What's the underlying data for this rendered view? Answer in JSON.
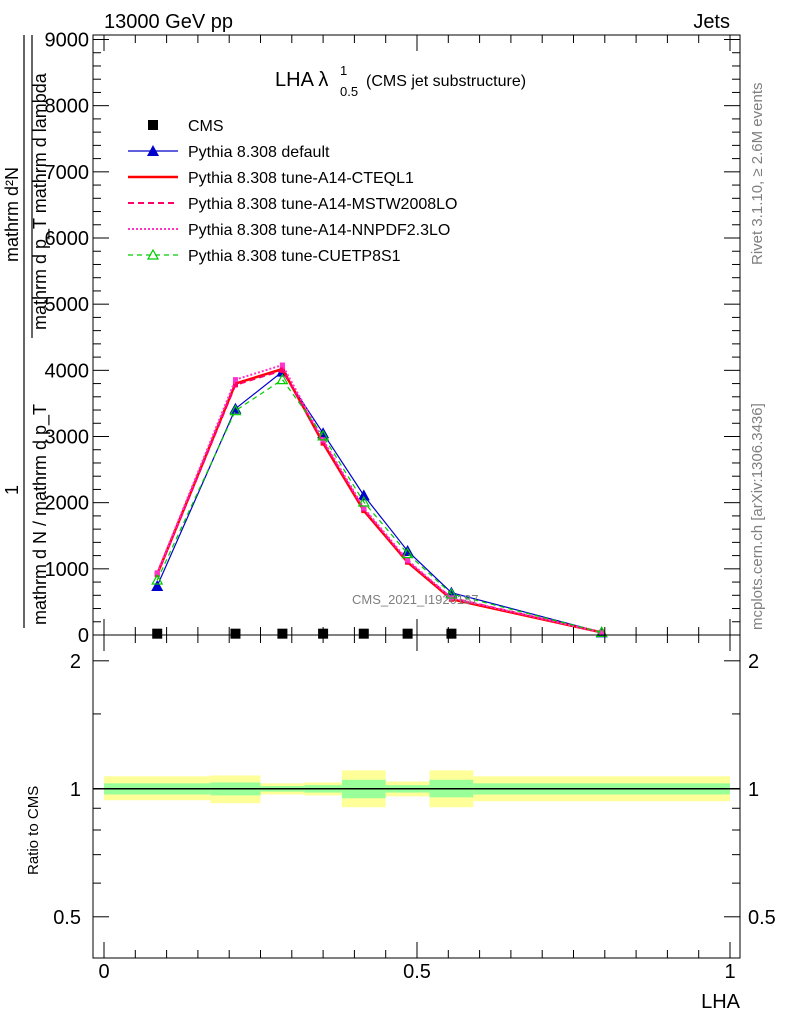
{
  "header": {
    "left_title": "13000 GeV pp",
    "right_title": "Jets",
    "plot_title_main": "LHA λ",
    "plot_title_sup": "1",
    "plot_title_sub": "0.5",
    "plot_title_suffix": "(CMS jet substructure)",
    "rivet_label": "Rivet 3.1.10, ≥ 2.6M events",
    "mcplots_label": "mcplots.cern.ch [arXiv:1306.3436]",
    "watermark": "CMS_2021_I1920187"
  },
  "ylabel_main": {
    "numerator_top": "mathrm d²N",
    "denominator_top": "mathrm d p_T mathrm d lambda",
    "left_one": "1",
    "left_denominator": "mathrm d N / mathrm d p_T"
  },
  "ratio_ylabel": "Ratio to CMS",
  "xlabel": "LHA",
  "colors": {
    "cms": "#000000",
    "default": "#0000cc",
    "cteql1": "#ff0000",
    "mstw": "#ff0066",
    "nnpdf": "#ff33cc",
    "cuetp8s1": "#00cc00",
    "band_inner": "#99ff99",
    "band_outer": "#ffff99"
  },
  "chart_data": [
    {
      "type": "line",
      "panel": "main",
      "xlim": [
        0,
        1
      ],
      "ylim": [
        0,
        9000
      ],
      "y_ticks": [
        0,
        1000,
        2000,
        3000,
        4000,
        5000,
        6000,
        7000,
        8000,
        9000
      ],
      "y_tick_labels": [
        "0",
        "1000",
        "2000",
        "3000",
        "4000",
        "5000",
        "6000",
        "7000",
        "8000",
        "9000"
      ],
      "legend_position": "top-left",
      "x": [
        0.085,
        0.21,
        0.285,
        0.35,
        0.415,
        0.485,
        0.555,
        0.795
      ],
      "series": [
        {
          "name": "CMS",
          "key": "cms",
          "style": "marker-square",
          "values": [
            20,
            20,
            20,
            20,
            20,
            20,
            20,
            null
          ]
        },
        {
          "name": "Pythia 8.308 default",
          "key": "default",
          "style": "solid-triangle",
          "values": [
            740,
            3420,
            3980,
            3050,
            2110,
            1270,
            640,
            40
          ]
        },
        {
          "name": "Pythia 8.308 tune-A14-CTEQL1",
          "key": "cteql1",
          "style": "solid-thick",
          "values": [
            920,
            3800,
            4020,
            2900,
            1880,
            1100,
            540,
            40
          ]
        },
        {
          "name": "Pythia 8.308 tune-A14-MSTW2008LO",
          "key": "mstw",
          "style": "dashed",
          "values": [
            910,
            3780,
            4000,
            2920,
            1900,
            1110,
            560,
            40
          ]
        },
        {
          "name": "Pythia 8.308 tune-A14-NNPDF2.3LO",
          "key": "nnpdf",
          "style": "dotted",
          "values": [
            940,
            3860,
            4080,
            2950,
            1920,
            1130,
            560,
            40
          ]
        },
        {
          "name": "Pythia 8.308 tune-CUETP8S1",
          "key": "cuetp8s1",
          "style": "dashed-open-triangle",
          "values": [
            830,
            3390,
            3860,
            3010,
            2010,
            1230,
            620,
            40
          ]
        }
      ]
    },
    {
      "type": "area",
      "panel": "ratio",
      "xlim": [
        0,
        1
      ],
      "ylim": [
        0.4,
        2.3
      ],
      "y_scale": "log",
      "y_ticks": [
        0.5,
        1,
        2
      ],
      "y_tick_labels": [
        "0.5",
        "1",
        "2"
      ],
      "x_ticks": [
        0,
        0.5,
        1
      ],
      "x_tick_labels": [
        "0",
        "0.5",
        "1"
      ],
      "reference": 1,
      "bins": [
        {
          "lo": 0.0,
          "hi": 0.17,
          "inner": [
            0.97,
            1.03
          ],
          "outer": [
            0.94,
            1.07
          ]
        },
        {
          "lo": 0.17,
          "hi": 0.25,
          "inner": [
            0.965,
            1.035
          ],
          "outer": [
            0.925,
            1.075
          ]
        },
        {
          "lo": 0.25,
          "hi": 0.32,
          "inner": [
            0.985,
            1.015
          ],
          "outer": [
            0.97,
            1.03
          ]
        },
        {
          "lo": 0.32,
          "hi": 0.38,
          "inner": [
            0.98,
            1.02
          ],
          "outer": [
            0.965,
            1.035
          ]
        },
        {
          "lo": 0.38,
          "hi": 0.45,
          "inner": [
            0.95,
            1.05
          ],
          "outer": [
            0.905,
            1.105
          ]
        },
        {
          "lo": 0.45,
          "hi": 0.52,
          "inner": [
            0.98,
            1.02
          ],
          "outer": [
            0.96,
            1.04
          ]
        },
        {
          "lo": 0.52,
          "hi": 0.59,
          "inner": [
            0.955,
            1.05
          ],
          "outer": [
            0.905,
            1.105
          ]
        },
        {
          "lo": 0.59,
          "hi": 1.0,
          "inner": [
            0.97,
            1.03
          ],
          "outer": [
            0.935,
            1.07
          ]
        }
      ]
    }
  ]
}
